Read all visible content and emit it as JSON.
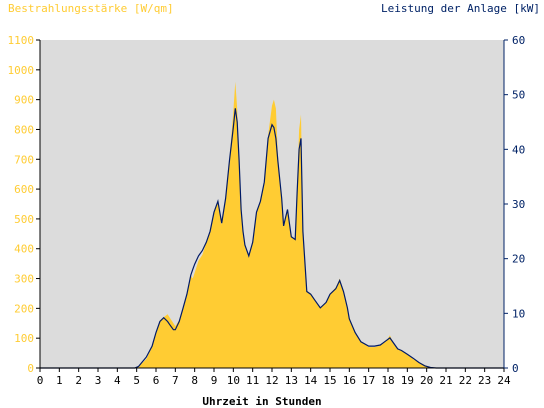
{
  "chart_data": {
    "type": "area",
    "title_left": "Bestrahlungsstärke [W/qm]",
    "title_right": "Leistung der Anlage [kW]",
    "xlabel": "Uhrzeit in Stunden",
    "x_ticks": [
      "0",
      "1",
      "2",
      "3",
      "4",
      "5",
      "6",
      "7",
      "8",
      "9",
      "10",
      "11",
      "12",
      "13",
      "14",
      "15",
      "16",
      "17",
      "18",
      "19",
      "20",
      "21",
      "22",
      "23",
      "24"
    ],
    "y_left_ticks": [
      "0",
      "100",
      "200",
      "300",
      "400",
      "500",
      "600",
      "700",
      "800",
      "900",
      "1000",
      "1100"
    ],
    "y_right_ticks": [
      "0",
      "10",
      "20",
      "30",
      "40",
      "50",
      "60"
    ],
    "xlim": [
      0,
      24
    ],
    "ylim_left": [
      0,
      1100
    ],
    "ylim_right": [
      0,
      60
    ],
    "grid": false,
    "colors": {
      "plot_background": "#dcdcdc",
      "irradiance_fill": "#ffcc33",
      "power_line": "#001a66",
      "left_axis_text": "#ffcc33",
      "right_axis_text": "#002266",
      "axis_text": "#000000"
    },
    "series": [
      {
        "axis": "left",
        "style": "area",
        "x": [
          0,
          4.9,
          5.1,
          5.5,
          5.8,
          6.0,
          6.2,
          6.4,
          6.6,
          6.7,
          6.9,
          7.0,
          7.2,
          7.4,
          7.6,
          7.8,
          7.9,
          8.0,
          8.2,
          8.4,
          8.6,
          8.8,
          9.0,
          9.2,
          9.4,
          9.6,
          9.8,
          10.0,
          10.1,
          10.2,
          10.3,
          10.4,
          10.5,
          10.6,
          10.8,
          11.0,
          11.2,
          11.4,
          11.6,
          11.8,
          12.0,
          12.1,
          12.2,
          12.3,
          12.5,
          12.6,
          12.7,
          12.8,
          13.0,
          13.2,
          13.3,
          13.4,
          13.5,
          13.6,
          13.8,
          14.0,
          14.2,
          14.5,
          14.8,
          15.0,
          15.3,
          15.5,
          15.7,
          15.9,
          16.0,
          16.3,
          16.6,
          17.0,
          17.3,
          17.6,
          17.9,
          18.1,
          18.3,
          18.5,
          18.7,
          19.0,
          19.3,
          19.6,
          19.9,
          20.2,
          20.5,
          21,
          24
        ],
        "y": [
          0,
          0,
          5,
          30,
          70,
          120,
          160,
          170,
          180,
          170,
          150,
          140,
          160,
          200,
          240,
          310,
          300,
          320,
          360,
          380,
          420,
          460,
          520,
          560,
          480,
          560,
          700,
          860,
          960,
          870,
          700,
          520,
          460,
          410,
          370,
          430,
          520,
          560,
          620,
          780,
          880,
          900,
          870,
          720,
          560,
          480,
          500,
          530,
          440,
          430,
          600,
          800,
          850,
          460,
          260,
          250,
          230,
          200,
          220,
          250,
          270,
          300,
          260,
          200,
          170,
          120,
          90,
          70,
          70,
          75,
          90,
          110,
          80,
          65,
          60,
          45,
          30,
          20,
          10,
          3,
          0,
          0,
          0
        ]
      },
      {
        "axis": "right",
        "style": "line",
        "x": [
          0,
          4.9,
          5.1,
          5.5,
          5.8,
          6.0,
          6.2,
          6.4,
          6.6,
          6.7,
          6.9,
          7.0,
          7.2,
          7.4,
          7.6,
          7.8,
          7.9,
          8.0,
          8.2,
          8.4,
          8.6,
          8.8,
          9.0,
          9.2,
          9.4,
          9.6,
          9.8,
          10.0,
          10.1,
          10.2,
          10.3,
          10.4,
          10.5,
          10.6,
          10.8,
          11.0,
          11.2,
          11.4,
          11.6,
          11.8,
          12.0,
          12.1,
          12.2,
          12.3,
          12.5,
          12.6,
          12.7,
          12.8,
          13.0,
          13.2,
          13.3,
          13.4,
          13.5,
          13.6,
          13.8,
          14.0,
          14.2,
          14.5,
          14.8,
          15.0,
          15.3,
          15.5,
          15.7,
          15.9,
          16.0,
          16.3,
          16.6,
          17.0,
          17.3,
          17.6,
          17.9,
          18.1,
          18.3,
          18.5,
          18.7,
          19.0,
          19.3,
          19.6,
          19.9,
          20.2,
          20.5,
          21,
          24
        ],
        "y": [
          0,
          0,
          0.3,
          2,
          4,
          6.5,
          8.5,
          9.2,
          8.5,
          8,
          7,
          7,
          8.5,
          11,
          13.5,
          17,
          18,
          19,
          20.5,
          21.5,
          23,
          25,
          28.5,
          30.5,
          26.5,
          31,
          38,
          44,
          47.5,
          45,
          38,
          29,
          25,
          22.5,
          20.5,
          23,
          28.5,
          30.5,
          34,
          42,
          44.5,
          44,
          42,
          38,
          31,
          26,
          27.5,
          29,
          24,
          23.5,
          32,
          40,
          42,
          25,
          14,
          13.5,
          12.5,
          11,
          12,
          13.5,
          14.5,
          16,
          14,
          11,
          9,
          6.5,
          4.8,
          4,
          4,
          4.2,
          5,
          5.5,
          4.5,
          3.5,
          3.2,
          2.5,
          1.8,
          1,
          0.4,
          0.1,
          0,
          0,
          0
        ]
      }
    ]
  }
}
